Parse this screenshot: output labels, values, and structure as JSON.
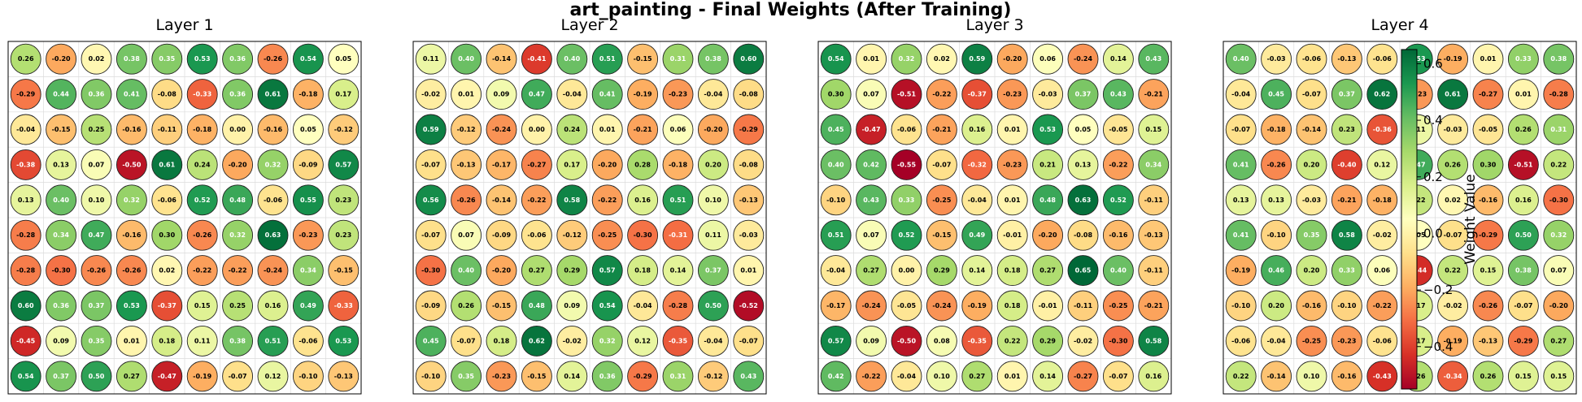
{
  "title": "art_painting - Final Weights (After Training)",
  "colorbar": {
    "label": "Weight Value",
    "ticks": [
      0.6,
      0.4,
      0.2,
      0.0,
      -0.2,
      -0.4
    ],
    "tick_labels": [
      "0.6",
      "0.4",
      "0.2",
      "0.0",
      "−0.2",
      "−0.4"
    ],
    "range": [
      -0.55,
      0.65
    ],
    "colormap": "RdYlGn"
  },
  "chart_data": [
    {
      "type": "heatmap",
      "title": "Layer 1",
      "rows": 10,
      "cols": 10,
      "values": [
        [
          0.26,
          -0.2,
          0.02,
          0.38,
          0.35,
          0.53,
          0.36,
          -0.26,
          0.54,
          0.05
        ],
        [
          -0.29,
          0.44,
          0.36,
          0.41,
          -0.08,
          -0.33,
          0.36,
          0.61,
          -0.18,
          0.17
        ],
        [
          -0.04,
          -0.15,
          0.25,
          -0.16,
          -0.11,
          -0.18,
          0.0,
          -0.16,
          0.05,
          -0.12
        ],
        [
          -0.38,
          0.13,
          0.07,
          -0.5,
          0.61,
          0.24,
          -0.2,
          0.32,
          -0.09,
          0.57
        ],
        [
          0.13,
          0.4,
          0.1,
          0.32,
          -0.06,
          0.52,
          0.48,
          -0.06,
          0.55,
          0.23
        ],
        [
          -0.28,
          0.34,
          0.47,
          -0.16,
          0.3,
          -0.26,
          0.32,
          0.63,
          -0.23,
          0.23
        ],
        [
          -0.28,
          -0.3,
          -0.26,
          -0.26,
          0.02,
          -0.22,
          -0.22,
          -0.24,
          0.34,
          -0.15
        ],
        [
          0.6,
          0.36,
          0.37,
          0.53,
          -0.37,
          0.15,
          0.25,
          0.16,
          0.49,
          -0.33
        ],
        [
          -0.45,
          0.09,
          0.35,
          0.01,
          0.18,
          0.11,
          0.38,
          0.51,
          -0.06,
          0.53
        ],
        [
          0.54,
          0.37,
          0.5,
          0.27,
          -0.47,
          -0.19,
          -0.07,
          0.12,
          -0.1,
          -0.13
        ]
      ]
    },
    {
      "type": "heatmap",
      "title": "Layer 2",
      "rows": 10,
      "cols": 10,
      "values": [
        [
          0.11,
          0.4,
          -0.14,
          -0.41,
          0.4,
          0.51,
          -0.15,
          0.31,
          0.38,
          0.6
        ],
        [
          -0.02,
          0.01,
          0.09,
          0.47,
          -0.04,
          0.41,
          -0.19,
          -0.23,
          -0.04,
          -0.08
        ],
        [
          0.59,
          -0.12,
          -0.24,
          0.0,
          0.24,
          0.01,
          -0.21,
          0.06,
          -0.2,
          -0.29
        ],
        [
          -0.07,
          -0.13,
          -0.17,
          -0.27,
          0.17,
          -0.2,
          0.28,
          -0.18,
          0.2,
          -0.08
        ],
        [
          0.56,
          -0.26,
          -0.14,
          -0.22,
          0.58,
          -0.22,
          0.16,
          0.51,
          0.1,
          -0.13
        ],
        [
          -0.07,
          0.07,
          -0.09,
          -0.06,
          -0.12,
          -0.25,
          -0.3,
          -0.31,
          0.11,
          -0.03
        ],
        [
          -0.3,
          0.4,
          -0.2,
          0.27,
          0.29,
          0.57,
          0.18,
          0.14,
          0.37,
          0.01
        ],
        [
          -0.09,
          0.26,
          -0.15,
          0.48,
          0.09,
          0.54,
          -0.04,
          -0.28,
          0.5,
          -0.52
        ],
        [
          0.45,
          -0.07,
          0.18,
          0.62,
          -0.02,
          0.32,
          0.12,
          -0.35,
          -0.04,
          -0.07
        ],
        [
          -0.1,
          0.35,
          -0.23,
          -0.15,
          0.14,
          0.36,
          -0.29,
          0.31,
          -0.12,
          0.43
        ]
      ]
    },
    {
      "type": "heatmap",
      "title": "Layer 3",
      "rows": 10,
      "cols": 10,
      "values": [
        [
          0.54,
          0.01,
          0.32,
          0.02,
          0.59,
          -0.2,
          0.06,
          -0.24,
          0.14,
          0.43
        ],
        [
          0.3,
          0.07,
          -0.51,
          -0.22,
          -0.37,
          -0.23,
          -0.03,
          0.37,
          0.43,
          -0.21
        ],
        [
          0.45,
          -0.47,
          -0.06,
          -0.21,
          0.16,
          0.01,
          0.53,
          0.05,
          -0.05,
          0.15
        ],
        [
          0.4,
          0.42,
          -0.55,
          -0.07,
          -0.32,
          -0.23,
          0.21,
          0.13,
          -0.22,
          0.34
        ],
        [
          -0.1,
          0.43,
          0.33,
          -0.25,
          -0.04,
          0.01,
          0.48,
          0.63,
          0.52,
          -0.11
        ],
        [
          0.51,
          0.07,
          0.52,
          -0.15,
          0.49,
          -0.01,
          -0.2,
          -0.08,
          -0.16,
          -0.13
        ],
        [
          -0.04,
          0.27,
          0.0,
          0.29,
          0.14,
          0.18,
          0.27,
          0.65,
          0.4,
          -0.11
        ],
        [
          -0.17,
          -0.24,
          -0.05,
          -0.24,
          -0.19,
          0.18,
          -0.01,
          -0.11,
          -0.25,
          -0.21
        ],
        [
          0.57,
          0.09,
          -0.5,
          0.08,
          -0.35,
          0.22,
          0.29,
          -0.02,
          -0.3,
          0.58
        ],
        [
          0.42,
          -0.22,
          -0.04,
          0.1,
          0.27,
          0.01,
          0.14,
          -0.27,
          -0.07,
          0.16
        ]
      ]
    },
    {
      "type": "heatmap",
      "title": "Layer 4",
      "rows": 10,
      "cols": 10,
      "values": [
        [
          0.4,
          -0.03,
          -0.06,
          -0.13,
          -0.06,
          0.53,
          -0.19,
          0.01,
          0.33,
          0.38
        ],
        [
          -0.04,
          0.45,
          -0.07,
          0.37,
          0.62,
          -0.23,
          0.61,
          -0.27,
          0.01,
          -0.28
        ],
        [
          -0.07,
          -0.18,
          -0.14,
          0.23,
          -0.36,
          0.11,
          -0.03,
          -0.05,
          0.26,
          0.31
        ],
        [
          0.41,
          -0.26,
          0.2,
          -0.4,
          0.12,
          0.47,
          0.26,
          0.3,
          -0.51,
          0.22
        ],
        [
          0.13,
          0.13,
          -0.03,
          -0.21,
          -0.18,
          0.22,
          0.02,
          -0.16,
          0.16,
          -0.3
        ],
        [
          0.41,
          -0.1,
          0.35,
          0.58,
          -0.02,
          0.05,
          -0.07,
          -0.29,
          0.5,
          0.32
        ],
        [
          -0.19,
          0.46,
          0.2,
          0.33,
          0.06,
          -0.44,
          0.22,
          0.15,
          0.38,
          0.07
        ],
        [
          -0.1,
          0.2,
          -0.16,
          -0.1,
          -0.22,
          0.17,
          -0.02,
          -0.26,
          -0.07,
          -0.2
        ],
        [
          -0.06,
          -0.04,
          -0.25,
          -0.23,
          -0.06,
          0.17,
          -0.19,
          -0.13,
          -0.29,
          0.27
        ],
        [
          0.22,
          -0.14,
          0.1,
          -0.16,
          -0.43,
          0.26,
          -0.34,
          0.26,
          0.15,
          0.15
        ]
      ]
    }
  ]
}
